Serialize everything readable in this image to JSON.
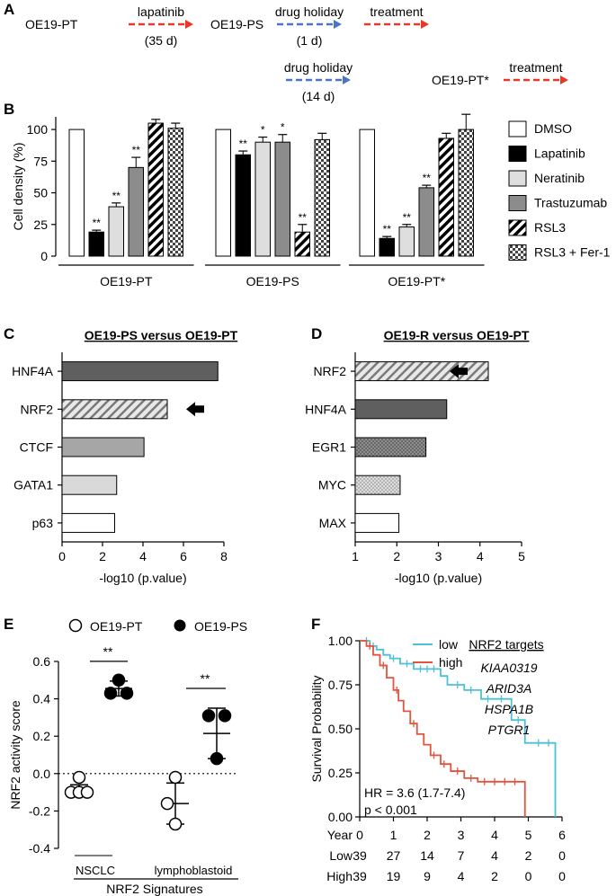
{
  "panels": {
    "a": "A",
    "b": "B",
    "c": "C",
    "d": "D",
    "e": "E",
    "f": "F"
  },
  "schematic": {
    "row1": [
      {
        "kind": "node",
        "text": "OE19-PT"
      },
      {
        "kind": "arrow",
        "color": "#e8382a",
        "top": "lapatinib",
        "bottom": "(35 d)"
      },
      {
        "kind": "node",
        "text": "OE19-PS"
      },
      {
        "kind": "arrow",
        "color": "#4a74cc",
        "top": "drug holiday",
        "bottom": "(1 d)"
      },
      {
        "kind": "arrow",
        "color": "#e8382a",
        "top": "treatment",
        "bottom": ""
      }
    ],
    "row2": [
      {
        "kind": "arrow",
        "color": "#4a74cc",
        "top": "drug holiday",
        "bottom": "(14 d)"
      },
      {
        "kind": "node",
        "text": "OE19-PT*"
      },
      {
        "kind": "arrow",
        "color": "#e8382a",
        "top": "treatment",
        "bottom": ""
      }
    ]
  },
  "chart_data": [
    {
      "id": "B",
      "type": "bar",
      "ylabel": "Cell density (%)",
      "ylim": [
        0,
        110
      ],
      "yticks": [
        0,
        25,
        50,
        75,
        100
      ],
      "groups": [
        "OE19-PT",
        "OE19-PS",
        "OE19-PT*"
      ],
      "series": [
        {
          "name": "DMSO",
          "style": "white",
          "values": [
            100,
            100,
            100
          ],
          "err": [
            0,
            0,
            0
          ],
          "sig": [
            "",
            "",
            ""
          ]
        },
        {
          "name": "Lapatinib",
          "style": "black",
          "values": [
            19,
            80,
            14
          ],
          "err": [
            1.5,
            3,
            1.5
          ],
          "sig": [
            "**",
            "**",
            "**"
          ]
        },
        {
          "name": "Neratinib",
          "style": "light",
          "values": [
            39,
            90,
            23
          ],
          "err": [
            3,
            4,
            2
          ],
          "sig": [
            "**",
            "*",
            "**"
          ]
        },
        {
          "name": "Trastuzumab",
          "style": "mid",
          "values": [
            70,
            90,
            54
          ],
          "err": [
            8,
            6,
            2
          ],
          "sig": [
            "**",
            "*",
            "**"
          ]
        },
        {
          "name": "RSL3",
          "style": "hatch",
          "values": [
            105,
            19,
            93
          ],
          "err": [
            3,
            6,
            4
          ],
          "sig": [
            "",
            "**",
            ""
          ]
        },
        {
          "name": "RSL3 + Fer-1",
          "style": "check",
          "values": [
            101,
            92,
            100
          ],
          "err": [
            4,
            5,
            12
          ],
          "sig": [
            "",
            "",
            ""
          ]
        }
      ]
    },
    {
      "id": "C",
      "type": "bar",
      "orientation": "horizontal",
      "title": "OE19-PS versus OE19-PT",
      "xlabel": "-log10 (p.value)",
      "xlim": [
        0,
        8
      ],
      "xticks": [
        0,
        2,
        4,
        6,
        8
      ],
      "categories": [
        "HNF4A",
        "NRF2",
        "CTCF",
        "GATA1",
        "p63"
      ],
      "values": [
        7.7,
        5.2,
        4.05,
        2.7,
        2.6
      ],
      "styles": [
        "dark",
        "hatch",
        "mid",
        "light",
        "white"
      ],
      "arrow_on": "NRF2"
    },
    {
      "id": "D",
      "type": "bar",
      "orientation": "horizontal",
      "title": "OE19-R versus OE19-PT",
      "xlabel": "-log10 (p.value)",
      "xlim": [
        1,
        5
      ],
      "xticks": [
        1,
        2,
        3,
        4,
        5
      ],
      "categories": [
        "NRF2",
        "HNF4A",
        "EGR1",
        "MYC",
        "MAX"
      ],
      "values": [
        4.2,
        3.2,
        2.7,
        2.08,
        2.05
      ],
      "styles": [
        "hatch",
        "dark",
        "dots",
        "dotslight",
        "white"
      ],
      "arrow_on": "NRF2"
    },
    {
      "id": "E",
      "type": "scatter",
      "ylabel": "NRF2 activity score",
      "ylim": [
        -0.4,
        0.6
      ],
      "yticks": [
        -0.4,
        -0.2,
        0.0,
        0.2,
        0.4,
        0.6
      ],
      "ytick_labels": [
        "-0.4",
        "-0.2",
        "0.0",
        "0.2",
        "0.4",
        "0.6"
      ],
      "legend": [
        {
          "name": "OE19-PT",
          "filled": false
        },
        {
          "name": "OE19-PS",
          "filled": true
        }
      ],
      "groups": [
        {
          "name": "NSCLC",
          "pt": {
            "points": [
              -0.02,
              -0.1,
              -0.1,
              -0.1
            ],
            "mean": -0.09,
            "sd": 0.03
          },
          "ps": {
            "points": [
              0.5,
              0.43,
              0.43
            ],
            "mean": 0.455,
            "sd": 0.04
          },
          "sig": "**"
        },
        {
          "name": "lymphoblastoid",
          "pt": {
            "points": [
              -0.02,
              -0.16,
              -0.27
            ],
            "mean": -0.16,
            "sd": 0.11
          },
          "ps": {
            "points": [
              0.31,
              0.31,
              0.08
            ],
            "mean": 0.215,
            "sd": 0.135
          },
          "sig": "**"
        }
      ],
      "xlabel": "NRF2 Signatures",
      "zero_line": true
    },
    {
      "id": "F",
      "type": "line",
      "subtype": "kaplan-meier",
      "ylabel": "Survival Probability",
      "xlim": [
        0,
        6
      ],
      "ylim": [
        0,
        1
      ],
      "yticks": [
        0,
        0.25,
        0.5,
        0.75,
        1.0
      ],
      "ytick_labels": [
        "0.00",
        "0.25",
        "0.50",
        "0.75",
        "1.00"
      ],
      "xticks": [
        0,
        1,
        2,
        3,
        4,
        5,
        6
      ],
      "series": [
        {
          "name": "low",
          "color": "#4ec0d4",
          "steps": [
            [
              0,
              1
            ],
            [
              0.3,
              0.97
            ],
            [
              0.5,
              0.95
            ],
            [
              0.7,
              0.92
            ],
            [
              0.9,
              0.9
            ],
            [
              1.2,
              0.87
            ],
            [
              1.6,
              0.84
            ],
            [
              2.4,
              0.8
            ],
            [
              2.6,
              0.75
            ],
            [
              3.1,
              0.72
            ],
            [
              3.6,
              0.67
            ],
            [
              4.5,
              0.55
            ],
            [
              4.9,
              0.42
            ],
            [
              5.8,
              0
            ]
          ],
          "censor": [
            0.2,
            0.4,
            1.0,
            1.4,
            1.8,
            2.0,
            2.2,
            2.9,
            3.3,
            3.8,
            4.2,
            4.7,
            5.3,
            5.6
          ]
        },
        {
          "name": "high",
          "color": "#e0553f",
          "steps": [
            [
              0,
              1
            ],
            [
              0.2,
              0.97
            ],
            [
              0.4,
              0.92
            ],
            [
              0.6,
              0.86
            ],
            [
              0.8,
              0.79
            ],
            [
              1.0,
              0.72
            ],
            [
              1.15,
              0.66
            ],
            [
              1.3,
              0.6
            ],
            [
              1.5,
              0.53
            ],
            [
              1.7,
              0.47
            ],
            [
              1.9,
              0.41
            ],
            [
              2.1,
              0.35
            ],
            [
              2.4,
              0.3
            ],
            [
              2.7,
              0.26
            ],
            [
              3.1,
              0.22
            ],
            [
              3.5,
              0.2
            ],
            [
              4.9,
              0
            ]
          ],
          "censor": [
            0.3,
            0.7,
            1.1,
            1.6,
            2.2,
            2.5,
            2.9,
            3.3,
            3.7,
            4.0,
            4.3,
            4.6
          ]
        }
      ],
      "targets_title": "NRF2 targets",
      "targets": [
        "KIAA0319",
        "ARID3A",
        "HSPA1B",
        "PTGR1"
      ],
      "hr": "HR = 3.6 (1.7-7.4)",
      "p": "p < 0.001",
      "risk_table": {
        "header": "Year",
        "rows": [
          {
            "label": "Low",
            "values": [
              "39",
              "27",
              "14",
              "7",
              "4",
              "2",
              "0"
            ]
          },
          {
            "label": "High",
            "values": [
              "39",
              "19",
              "9",
              "4",
              "2",
              "0",
              "0"
            ]
          }
        ],
        "years": [
          "0",
          "1",
          "2",
          "3",
          "4",
          "5",
          "6"
        ]
      }
    }
  ]
}
